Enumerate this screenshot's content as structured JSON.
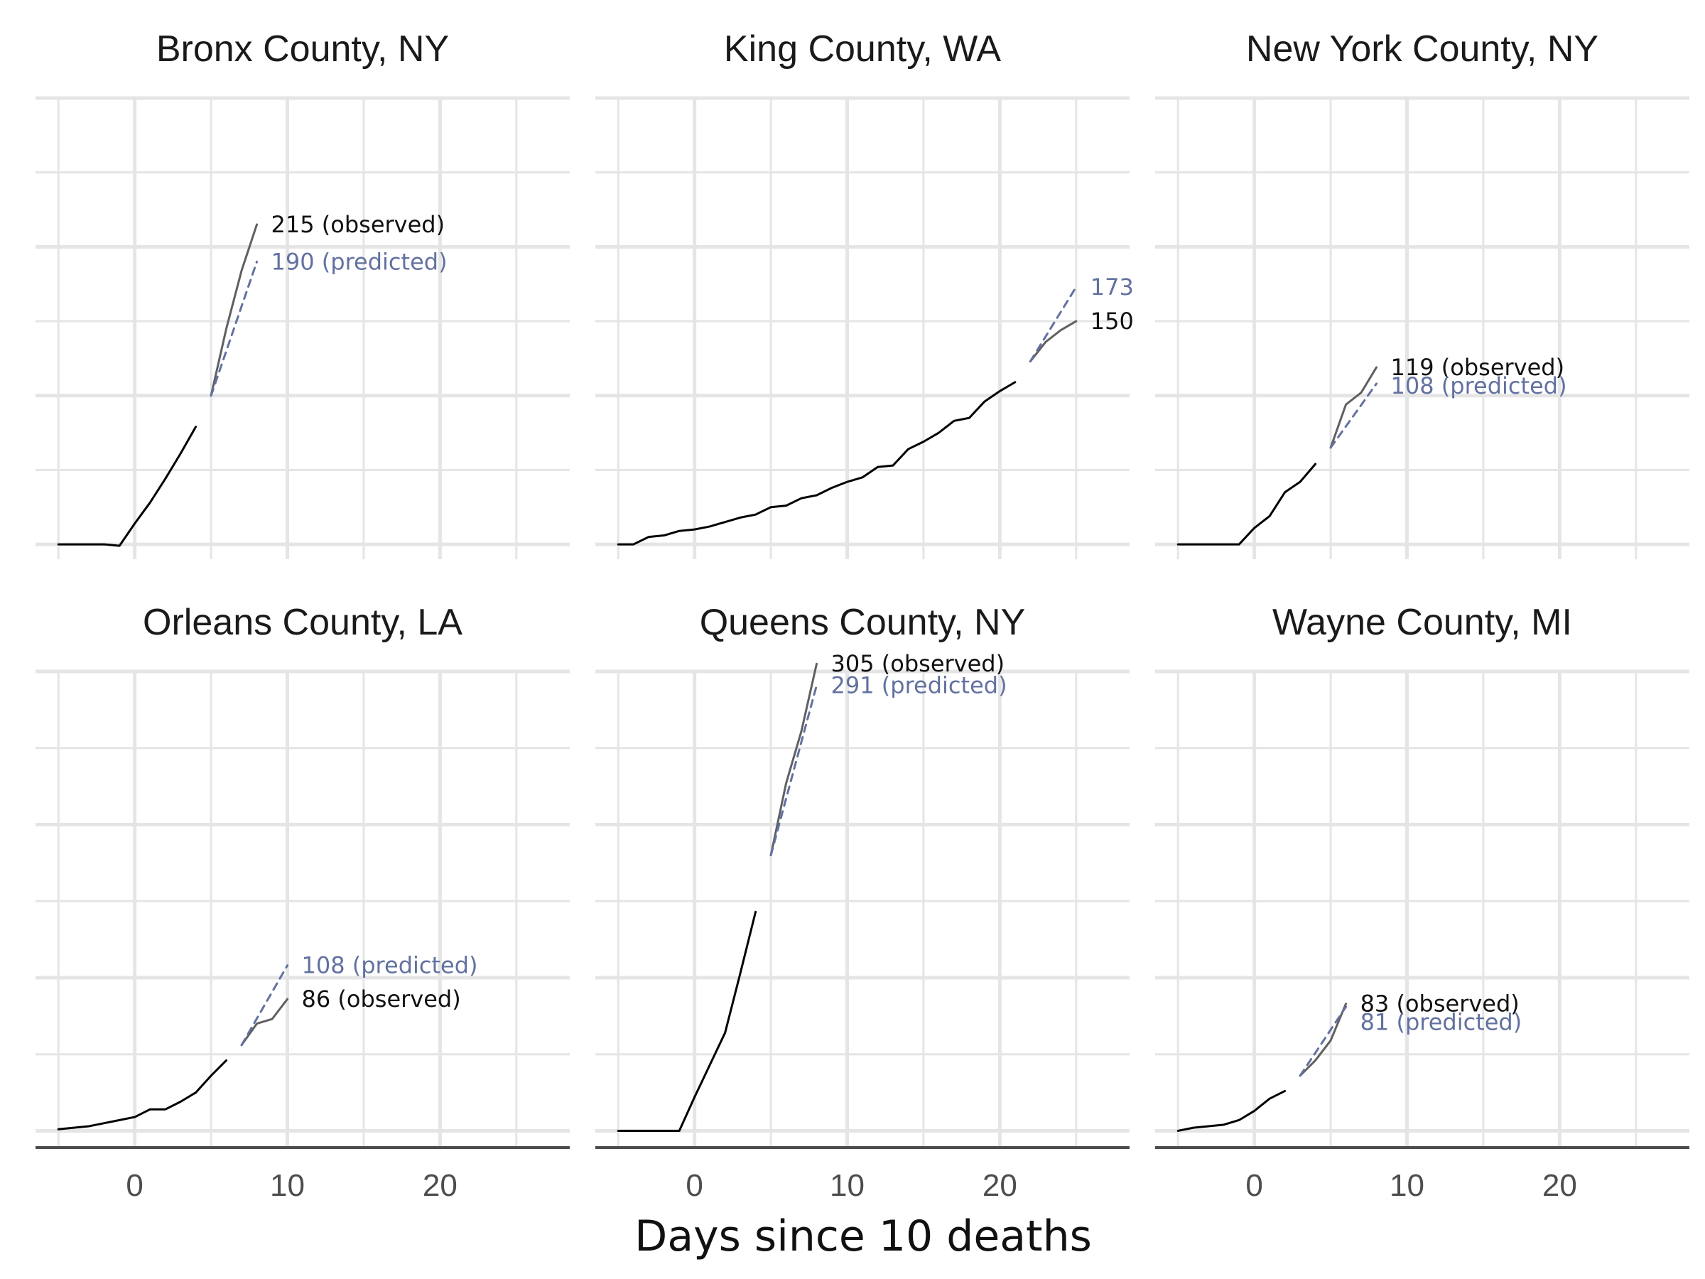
{
  "chart_data": {
    "type": "line",
    "xlabel": "Days since 10 deaths",
    "xlim": [
      -6.5,
      28.5
    ],
    "xticks": [
      0,
      10,
      20
    ],
    "grid": true,
    "colors": {
      "observed": "#000000",
      "recent_observed": "#606060",
      "predicted": "#6271a0",
      "grid": "#e5e5e5"
    },
    "panels": [
      {
        "title": "Bronx County, NY",
        "ylim": [
          -10,
          300
        ],
        "observed": {
          "x": [
            -5,
            -4,
            -3,
            -2,
            -1,
            0,
            1,
            2,
            3,
            4
          ],
          "y": [
            0,
            0,
            0,
            0,
            -1,
            14,
            28,
            44,
            61,
            79
          ]
        },
        "recent_observed": {
          "x": [
            5,
            6,
            7,
            8
          ],
          "y": [
            100,
            145,
            184,
            215
          ]
        },
        "predicted": {
          "x": [
            5,
            8
          ],
          "y": [
            100,
            190
          ]
        },
        "labels": {
          "observed": "215  (observed)",
          "predicted": "190 (predicted)"
        }
      },
      {
        "title": "King County, WA",
        "ylim": [
          -10,
          300
        ],
        "observed": {
          "x": [
            -5,
            -4,
            -3,
            -2,
            -1,
            0,
            1,
            2,
            3,
            4,
            5,
            6,
            7,
            8,
            9,
            10,
            11,
            12,
            13,
            14,
            15,
            16,
            17,
            18,
            19,
            20,
            21
          ],
          "y": [
            0,
            0,
            5,
            6,
            9,
            10,
            12,
            15,
            18,
            20,
            25,
            26,
            31,
            33,
            38,
            42,
            45,
            52,
            53,
            64,
            69,
            75,
            83,
            85,
            96,
            103,
            109
          ]
        },
        "recent_observed": {
          "x": [
            22,
            23,
            24,
            25
          ],
          "y": [
            123,
            136,
            144,
            150
          ]
        },
        "predicted": {
          "x": [
            22,
            25
          ],
          "y": [
            123,
            173
          ]
        },
        "labels": {
          "observed": "150",
          "predicted": "173"
        }
      },
      {
        "title": "New York County, NY",
        "ylim": [
          -10,
          300
        ],
        "observed": {
          "x": [
            -5,
            -4,
            -3,
            -2,
            -1,
            0,
            1,
            2,
            3,
            4
          ],
          "y": [
            0,
            0,
            0,
            0,
            0,
            11,
            19,
            35,
            42,
            54
          ]
        },
        "recent_observed": {
          "x": [
            5,
            6,
            7,
            8
          ],
          "y": [
            65,
            94,
            102,
            119
          ]
        },
        "predicted": {
          "x": [
            5,
            8
          ],
          "y": [
            65,
            108
          ]
        },
        "labels": {
          "observed": "119  (observed)",
          "predicted": "108 (predicted)"
        }
      },
      {
        "title": "Orleans County, LA",
        "ylim": [
          -10,
          300
        ],
        "observed": {
          "x": [
            -5,
            -4,
            -3,
            -2,
            -1,
            0,
            1,
            2,
            3,
            4,
            5,
            6
          ],
          "y": [
            1,
            2,
            3,
            5,
            7,
            9,
            14,
            14,
            19,
            25,
            36,
            46
          ]
        },
        "recent_observed": {
          "x": [
            7,
            8,
            9,
            10
          ],
          "y": [
            56,
            70,
            73,
            86
          ]
        },
        "predicted": {
          "x": [
            7,
            10
          ],
          "y": [
            56,
            108
          ]
        },
        "labels": {
          "observed": "86  (observed)",
          "predicted": "108 (predicted)"
        }
      },
      {
        "title": "Queens County, NY",
        "ylim": [
          -10,
          300
        ],
        "observed": {
          "x": [
            -5,
            -4,
            -3,
            -2,
            -1,
            0,
            1,
            2,
            3,
            4
          ],
          "y": [
            0,
            0,
            0,
            0,
            0,
            22,
            43,
            64,
            103,
            143
          ]
        },
        "recent_observed": {
          "x": [
            5,
            6,
            7,
            8
          ],
          "y": [
            180,
            227,
            261,
            305
          ]
        },
        "predicted": {
          "x": [
            5,
            8
          ],
          "y": [
            180,
            291
          ]
        },
        "labels": {
          "observed": "305  (observed)",
          "predicted": "291 (predicted)"
        }
      },
      {
        "title": "Wayne County, MI",
        "ylim": [
          -10,
          300
        ],
        "observed": {
          "x": [
            -5,
            -4,
            -3,
            -2,
            -1,
            0,
            1,
            2
          ],
          "y": [
            0,
            2,
            3,
            4,
            7,
            13,
            21,
            26
          ]
        },
        "recent_observed": {
          "x": [
            3,
            4,
            5,
            6
          ],
          "y": [
            36,
            46,
            59,
            83
          ]
        },
        "predicted": {
          "x": [
            3,
            6
          ],
          "y": [
            36,
            81
          ]
        },
        "labels": {
          "observed": "83  (observed)",
          "predicted": "81 (predicted)"
        }
      }
    ]
  }
}
